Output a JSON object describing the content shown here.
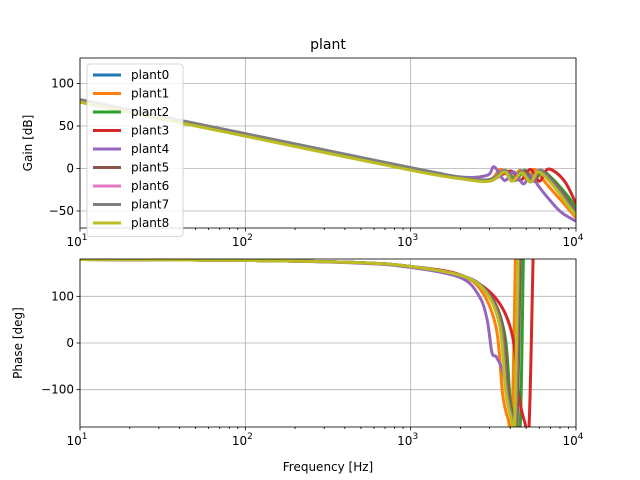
{
  "figure_title": "plant",
  "chart_data": [
    {
      "type": "line",
      "panel": "gain",
      "title": "plant",
      "xlabel": "",
      "ylabel": "Gain [dB]",
      "xscale": "log",
      "xlim": [
        10,
        10000
      ],
      "ylim": [
        -70,
        130
      ],
      "xticks": [
        {
          "value": 10,
          "label": "10",
          "sup": "1"
        },
        {
          "value": 100,
          "label": "10",
          "sup": "2"
        },
        {
          "value": 1000,
          "label": "10",
          "sup": "3"
        },
        {
          "value": 10000,
          "label": "10",
          "sup": "4"
        }
      ],
      "yticks": [
        {
          "value": -50,
          "label": "−50"
        },
        {
          "value": 0,
          "label": "0"
        },
        {
          "value": 50,
          "label": "50"
        },
        {
          "value": 100,
          "label": "100"
        }
      ],
      "grid": true,
      "legend": "upper-left",
      "series": [
        {
          "name": "plant0",
          "color": "#1f77b4",
          "x": [
            10,
            100,
            1000,
            2000,
            3000,
            3700,
            4200,
            4700,
            5400,
            6000,
            7000,
            8000,
            9000,
            10000
          ],
          "y": [
            80,
            40,
            0,
            -11,
            -14,
            -2,
            -14,
            -3,
            -15,
            -2,
            -14,
            -28,
            -42,
            -55
          ]
        },
        {
          "name": "plant1",
          "color": "#ff7f0e",
          "x": [
            10,
            100,
            1000,
            2000,
            3000,
            3500,
            4100,
            4600,
            5100,
            5600,
            6500,
            7500,
            8500,
            10000
          ],
          "y": [
            80,
            40,
            0,
            -11,
            -13,
            -1,
            -12,
            -2,
            -14,
            -1,
            -16,
            -30,
            -42,
            -58
          ]
        },
        {
          "name": "plant2",
          "color": "#2ca02c",
          "x": [
            10,
            100,
            1000,
            2000,
            3000,
            3800,
            4300,
            4900,
            5600,
            6200,
            7200,
            8200,
            9200,
            10000
          ],
          "y": [
            80,
            40,
            0,
            -11,
            -14,
            -3,
            -14,
            -2,
            -15,
            -3,
            -12,
            -24,
            -36,
            -48
          ]
        },
        {
          "name": "plant3",
          "color": "#d62728",
          "x": [
            10,
            100,
            1000,
            2000,
            3000,
            4000,
            4600,
            5300,
            6000,
            6700,
            7600,
            8600,
            9400,
            10000
          ],
          "y": [
            80,
            40,
            0,
            -11,
            -14,
            -3,
            -14,
            -1,
            -15,
            -1,
            -5,
            -16,
            -30,
            -42
          ]
        },
        {
          "name": "plant4",
          "color": "#9467bd",
          "x": [
            10,
            100,
            1000,
            2000,
            2900,
            3200,
            3700,
            4200,
            4800,
            5300,
            6000,
            7000,
            8200,
            10000
          ],
          "y": [
            80,
            40,
            0,
            -10,
            -8,
            2,
            -14,
            -4,
            -18,
            -8,
            -22,
            -38,
            -52,
            -62
          ]
        },
        {
          "name": "plant5",
          "color": "#8c564b",
          "x": [
            10,
            100,
            1000,
            2000,
            3000,
            3700,
            4200,
            4800,
            5500,
            6100,
            7100,
            8100,
            9100,
            10000
          ],
          "y": [
            80,
            40,
            0,
            -11,
            -14,
            -3,
            -14,
            -3,
            -15,
            -2,
            -13,
            -26,
            -40,
            -52
          ]
        },
        {
          "name": "plant6",
          "color": "#e377c2",
          "x": [
            10,
            100,
            1000,
            2000,
            3000,
            3700,
            4200,
            4700,
            5400,
            6000,
            7000,
            8000,
            9000,
            10000
          ],
          "y": [
            80,
            40,
            0,
            -11,
            -14,
            -3,
            -14,
            -4,
            -15,
            -3,
            -14,
            -28,
            -42,
            -54
          ]
        },
        {
          "name": "plant7",
          "color": "#7f7f7f",
          "x": [
            10,
            100,
            1000,
            2000,
            3000,
            3700,
            4200,
            4700,
            5400,
            6000,
            7000,
            8000,
            9000,
            10000
          ],
          "y": [
            81,
            41,
            1,
            -10,
            -13,
            -2,
            -13,
            -3,
            -14,
            -2,
            -13,
            -27,
            -41,
            -53
          ]
        },
        {
          "name": "plant8",
          "color": "#bcbd22",
          "x": [
            10,
            100,
            1000,
            2000,
            3000,
            3700,
            4100,
            4700,
            5300,
            5900,
            6900,
            7900,
            8900,
            10000
          ],
          "y": [
            78,
            38,
            -2,
            -12,
            -15,
            -4,
            -15,
            -5,
            -16,
            -4,
            -15,
            -29,
            -43,
            -55
          ]
        }
      ]
    },
    {
      "type": "line",
      "panel": "phase",
      "title": "",
      "xlabel": "Frequency [Hz]",
      "ylabel": "Phase [deg]",
      "xscale": "log",
      "xlim": [
        10,
        10000
      ],
      "ylim": [
        -180,
        180
      ],
      "xticks": [
        {
          "value": 10,
          "label": "10",
          "sup": "1"
        },
        {
          "value": 100,
          "label": "10",
          "sup": "2"
        },
        {
          "value": 1000,
          "label": "10",
          "sup": "3"
        },
        {
          "value": 10000,
          "label": "10",
          "sup": "4"
        }
      ],
      "yticks": [
        {
          "value": -100,
          "label": "−100"
        },
        {
          "value": 0,
          "label": "0"
        },
        {
          "value": 100,
          "label": "100"
        }
      ],
      "grid": true,
      "series": [
        {
          "name": "plant0",
          "color": "#1f77b4",
          "x": [
            10,
            100,
            500,
            1000,
            2000,
            2800,
            3500,
            3800,
            4100,
            4300,
            4500,
            4700
          ],
          "y": [
            179,
            177,
            172,
            164,
            145,
            115,
            40,
            -100,
            -160,
            -175,
            180,
            175
          ]
        },
        {
          "name": "plant1",
          "color": "#ff7f0e",
          "x": [
            10,
            100,
            500,
            1000,
            2000,
            2700,
            3300,
            3600,
            3900,
            4100,
            4300
          ],
          "y": [
            179,
            177,
            172,
            164,
            145,
            110,
            30,
            -110,
            -165,
            -178,
            180
          ]
        },
        {
          "name": "plant2",
          "color": "#2ca02c",
          "x": [
            10,
            100,
            500,
            1000,
            2000,
            3000,
            3700,
            4000,
            4300,
            4600,
            4800
          ],
          "y": [
            179,
            177,
            172,
            164,
            145,
            105,
            20,
            -120,
            -170,
            -178,
            180
          ]
        },
        {
          "name": "plant3",
          "color": "#d62728",
          "x": [
            10,
            100,
            500,
            1000,
            2000,
            3200,
            4100,
            4500,
            4900,
            5200,
            5500
          ],
          "y": [
            179,
            177,
            172,
            164,
            146,
            100,
            20,
            -110,
            -170,
            -178,
            180
          ]
        },
        {
          "name": "plant4",
          "color": "#9467bd",
          "x": [
            10,
            100,
            500,
            1000,
            2000,
            2600,
            2900,
            3100,
            3300,
            3600,
            3900,
            4200,
            4400
          ],
          "y": [
            179,
            177,
            171,
            162,
            140,
            100,
            50,
            -20,
            -30,
            -60,
            -120,
            -170,
            -178
          ]
        },
        {
          "name": "plant5",
          "color": "#8c564b",
          "x": [
            10,
            100,
            500,
            1000,
            2000,
            2900,
            3600,
            3900,
            4200,
            4400,
            4600
          ],
          "y": [
            179,
            177,
            172,
            164,
            145,
            110,
            35,
            -105,
            -165,
            -177,
            180
          ]
        },
        {
          "name": "plant6",
          "color": "#e377c2",
          "x": [
            10,
            100,
            500,
            1000,
            2000,
            2800,
            3500,
            3800,
            4100,
            4300,
            4500
          ],
          "y": [
            179,
            177,
            172,
            164,
            145,
            115,
            40,
            -100,
            -160,
            -175,
            180
          ]
        },
        {
          "name": "plant7",
          "color": "#7f7f7f",
          "x": [
            10,
            100,
            500,
            1000,
            2000,
            2800,
            3500,
            3800,
            4100,
            4300,
            4500
          ],
          "y": [
            179,
            177,
            172,
            164,
            145,
            115,
            42,
            -98,
            -160,
            -175,
            180
          ]
        },
        {
          "name": "plant8",
          "color": "#bcbd22",
          "x": [
            10,
            100,
            500,
            1000,
            2000,
            2800,
            3450,
            3750,
            4050,
            4250,
            4450
          ],
          "y": [
            179,
            177,
            172,
            164,
            145,
            112,
            38,
            -102,
            -162,
            -176,
            180
          ]
        }
      ]
    }
  ]
}
